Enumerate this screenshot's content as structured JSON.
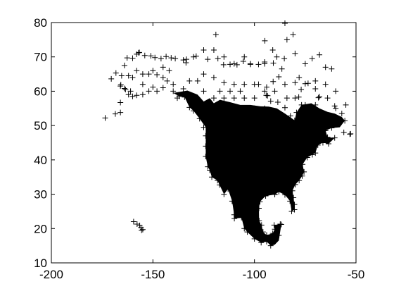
{
  "chart_data": {
    "type": "scatter",
    "title": "",
    "xlabel": "",
    "ylabel": "",
    "marker": "+",
    "marker_color": "#000000",
    "background": "#ffffff",
    "grid": false,
    "xlim": [
      -200,
      -50
    ],
    "ylim": [
      10,
      80
    ],
    "xticks": [
      -200,
      -150,
      -100,
      -50
    ],
    "yticks": [
      10,
      20,
      30,
      40,
      50,
      60,
      70,
      80
    ],
    "xtick_labels": [
      "-200",
      "-150",
      "-100",
      "-50"
    ],
    "ytick_labels": [
      "10",
      "20",
      "30",
      "40",
      "50",
      "60",
      "70",
      "80"
    ],
    "series": [
      {
        "points": [
          [
            -173.5,
            52.2
          ],
          [
            -170.5,
            63.6
          ],
          [
            -168.5,
            53.4
          ],
          [
            -168.2,
            65.3
          ],
          [
            -166,
            56.7
          ],
          [
            -166,
            53.8
          ],
          [
            -165.8,
            61.9
          ],
          [
            -165.4,
            64.5
          ],
          [
            -164,
            67.5
          ],
          [
            -163.5,
            60.5
          ],
          [
            -162.7,
            69.7
          ],
          [
            -160,
            69.6
          ],
          [
            -158,
            70.8
          ],
          [
            -157,
            71.2
          ],
          [
            -156.7,
            71.3
          ],
          [
            -154,
            70.4
          ],
          [
            -151,
            70.3
          ],
          [
            -149,
            69.8
          ],
          [
            -146,
            69.5
          ],
          [
            -143.5,
            70.1
          ],
          [
            -139,
            69.5
          ],
          [
            -135,
            69.1
          ],
          [
            -133.7,
            68.3
          ],
          [
            -130,
            70
          ],
          [
            -125,
            72
          ],
          [
            -120,
            72
          ],
          [
            -119,
            76.5
          ],
          [
            -115,
            70
          ],
          [
            -110,
            68
          ],
          [
            -105,
            70
          ],
          [
            -102,
            68
          ],
          [
            -95,
            68
          ],
          [
            -94.9,
            74.7
          ],
          [
            -91,
            72
          ],
          [
            -89,
            70
          ],
          [
            -85,
            79.8
          ],
          [
            -84,
            75
          ],
          [
            -81,
            76.5
          ],
          [
            -80,
            71
          ],
          [
            -75,
            68
          ],
          [
            -71.6,
            69.5
          ],
          [
            -68,
            70.6
          ],
          [
            -65,
            67
          ],
          [
            -62,
            66.5
          ],
          [
            -78,
            64
          ],
          [
            -70,
            63
          ],
          [
            -65,
            62
          ],
          [
            -60,
            60
          ],
          [
            -55,
            56
          ],
          [
            -58.5,
            52
          ],
          [
            -57,
            51.5
          ],
          [
            -60,
            55
          ],
          [
            -68.5,
            58.1
          ],
          [
            -70,
            56
          ],
          [
            -75,
            62.2
          ],
          [
            -80,
            62.5
          ],
          [
            -84,
            58
          ],
          [
            -90,
            60
          ],
          [
            -93.5,
            58.7
          ],
          [
            -95,
            60
          ],
          [
            -100,
            62
          ],
          [
            -105,
            62
          ],
          [
            -110,
            62
          ],
          [
            -115,
            62.5
          ],
          [
            -120,
            64
          ],
          [
            -125,
            65
          ],
          [
            -128,
            63
          ],
          [
            -132,
            63
          ],
          [
            -135,
            60.7
          ],
          [
            -138,
            58
          ],
          [
            -140,
            60
          ],
          [
            -145,
            61
          ],
          [
            -150,
            61.2
          ],
          [
            -152,
            60
          ],
          [
            -155,
            59
          ],
          [
            -158,
            58.8
          ],
          [
            -160,
            58.5
          ],
          [
            -162,
            59
          ],
          [
            -164,
            60.8
          ],
          [
            -166,
            61.5
          ],
          [
            -162,
            64.5
          ],
          [
            -158,
            66
          ],
          [
            -155,
            65
          ],
          [
            -152,
            65
          ],
          [
            -148,
            64.8
          ],
          [
            -145,
            64
          ],
          [
            -142,
            66
          ],
          [
            -140,
            62
          ],
          [
            -137,
            58.5
          ],
          [
            -134.4,
            58.3
          ],
          [
            -132,
            55.3
          ],
          [
            -130,
            54.3
          ],
          [
            -127,
            52
          ],
          [
            -125,
            49.5
          ],
          [
            -124,
            47
          ],
          [
            -124,
            44
          ],
          [
            -124,
            41
          ],
          [
            -123,
            38
          ],
          [
            -122,
            37
          ],
          [
            -121,
            35
          ],
          [
            -118.2,
            34
          ],
          [
            -117.2,
            32.7
          ],
          [
            -115,
            30
          ],
          [
            -113,
            31.5
          ],
          [
            -111,
            28
          ],
          [
            -110,
            24
          ],
          [
            -109.9,
            22.9
          ],
          [
            -106.4,
            23.2
          ],
          [
            -105,
            20
          ],
          [
            -103.5,
            19
          ],
          [
            -100,
            17
          ],
          [
            -96.7,
            15.9
          ],
          [
            -94,
            16.2
          ],
          [
            -92,
            15
          ],
          [
            -90.3,
            21
          ],
          [
            -88,
            18
          ],
          [
            -87.3,
            21.3
          ],
          [
            -86.8,
            21.2
          ],
          [
            -90,
            19.8
          ],
          [
            -91,
            18.6
          ],
          [
            -94,
            18.1
          ],
          [
            -95.8,
            19
          ],
          [
            -96.5,
            21
          ],
          [
            -97.7,
            22.3
          ],
          [
            -97.8,
            25.9
          ],
          [
            -97.3,
            27.8
          ],
          [
            -94.5,
            29.5
          ],
          [
            -90,
            29.9
          ],
          [
            -88,
            30.7
          ],
          [
            -85,
            29.8
          ],
          [
            -82.5,
            28
          ],
          [
            -81.7,
            25
          ],
          [
            -80.3,
            25.5
          ],
          [
            -80.3,
            27
          ],
          [
            -80.8,
            29
          ],
          [
            -81.3,
            31
          ],
          [
            -79.9,
            32.8
          ],
          [
            -78,
            34
          ],
          [
            -76.5,
            35.3
          ],
          [
            -75.6,
            36.5
          ],
          [
            -76.3,
            38.7
          ],
          [
            -74,
            40.7
          ],
          [
            -71.5,
            41.5
          ],
          [
            -70,
            42
          ],
          [
            -68.8,
            44.3
          ],
          [
            -66.3,
            45
          ],
          [
            -63.5,
            44.7
          ],
          [
            -60.5,
            46.4
          ],
          [
            -64,
            46.6
          ],
          [
            -65,
            48.5
          ],
          [
            -62,
            49.3
          ],
          [
            -56,
            48
          ],
          [
            -53,
            47.5
          ],
          [
            -52.7,
            47.6
          ],
          [
            -55.5,
            51.4
          ],
          [
            -57,
            53.5
          ],
          [
            -60.5,
            55.7
          ],
          [
            -64,
            58
          ],
          [
            -68,
            58.4
          ],
          [
            -70,
            60.7
          ],
          [
            -73.6,
            62.3
          ],
          [
            -77,
            60.5
          ],
          [
            -78.2,
            58.3
          ],
          [
            -76.8,
            56
          ],
          [
            -79.3,
            53.8
          ],
          [
            -80.2,
            51.5
          ],
          [
            -82.3,
            52.8
          ],
          [
            -85,
            55.2
          ],
          [
            -88.5,
            56.8
          ],
          [
            -92,
            57.1
          ],
          [
            -94.2,
            58.8
          ],
          [
            -94,
            61.2
          ],
          [
            -90.8,
            62.8
          ],
          [
            -88,
            64.2
          ],
          [
            -86.5,
            66.5
          ],
          [
            -85.3,
            69.5
          ],
          [
            -90.7,
            68.2
          ],
          [
            -95,
            68.5
          ],
          [
            -98,
            67.8
          ],
          [
            -102,
            67.8
          ],
          [
            -105.5,
            68.7
          ],
          [
            -108.6,
            67.7
          ],
          [
            -112,
            67.8
          ],
          [
            -115.2,
            67.7
          ],
          [
            -118,
            69.5
          ],
          [
            -123,
            69.3
          ],
          [
            -128.7,
            70.2
          ],
          [
            -133.5,
            69.3
          ],
          [
            -141,
            69.7
          ],
          [
            -155.6,
            19.5
          ],
          [
            -156.5,
            20.9
          ],
          [
            -157.8,
            21.3
          ],
          [
            -159.5,
            22
          ],
          [
            -155,
            19.7
          ],
          [
            -155.9,
            20.3
          ],
          [
            -120,
            50
          ],
          [
            -115,
            50
          ],
          [
            -110,
            50
          ],
          [
            -105,
            50
          ],
          [
            -100,
            50
          ],
          [
            -95,
            50
          ],
          [
            -90,
            48
          ],
          [
            -85,
            48
          ],
          [
            -80,
            48
          ],
          [
            -75,
            48
          ],
          [
            -120,
            45
          ],
          [
            -115,
            45
          ],
          [
            -110,
            45
          ],
          [
            -105,
            45
          ],
          [
            -100,
            45
          ],
          [
            -95,
            45
          ],
          [
            -90,
            45
          ],
          [
            -85,
            45
          ],
          [
            -80,
            45
          ],
          [
            -75,
            45
          ],
          [
            -120,
            40
          ],
          [
            -115,
            40
          ],
          [
            -110,
            40
          ],
          [
            -105,
            40
          ],
          [
            -100,
            40
          ],
          [
            -95,
            40
          ],
          [
            -90,
            40
          ],
          [
            -85,
            40
          ],
          [
            -80,
            40
          ],
          [
            -118,
            35
          ],
          [
            -112,
            35
          ],
          [
            -105,
            35
          ],
          [
            -98,
            35
          ],
          [
            -92,
            35
          ],
          [
            -86,
            35
          ],
          [
            -80,
            35
          ],
          [
            -110,
            30
          ],
          [
            -105,
            30
          ],
          [
            -100,
            30
          ],
          [
            -95,
            30
          ],
          [
            -90,
            30
          ],
          [
            -85,
            31
          ],
          [
            -108,
            25
          ],
          [
            -103,
            25
          ],
          [
            -100,
            25
          ],
          [
            -100,
            20
          ],
          [
            -98,
            18
          ],
          [
            -120,
            55
          ],
          [
            -115,
            55
          ],
          [
            -110,
            55
          ],
          [
            -105,
            55
          ],
          [
            -100,
            55
          ],
          [
            -95,
            55
          ],
          [
            -120,
            58
          ],
          [
            -115,
            58
          ],
          [
            -110,
            58
          ],
          [
            -105,
            58
          ],
          [
            -100,
            58
          ],
          [
            -150,
            66
          ],
          [
            -145,
            67
          ],
          [
            -155,
            62
          ],
          [
            -148,
            60
          ],
          [
            -143,
            63
          ],
          [
            -160,
            64
          ],
          [
            -161,
            60
          ],
          [
            -125,
            60
          ],
          [
            -128,
            58
          ],
          [
            -130,
            56
          ],
          [
            -117,
            60
          ],
          [
            -112,
            60
          ],
          [
            -107,
            60
          ],
          [
            -98,
            62
          ],
          [
            -85,
            62
          ],
          [
            -80,
            58
          ],
          [
            -75,
            56
          ],
          [
            -70,
            54
          ],
          [
            -65,
            52
          ],
          [
            -62,
            50
          ]
        ]
      }
    ]
  }
}
